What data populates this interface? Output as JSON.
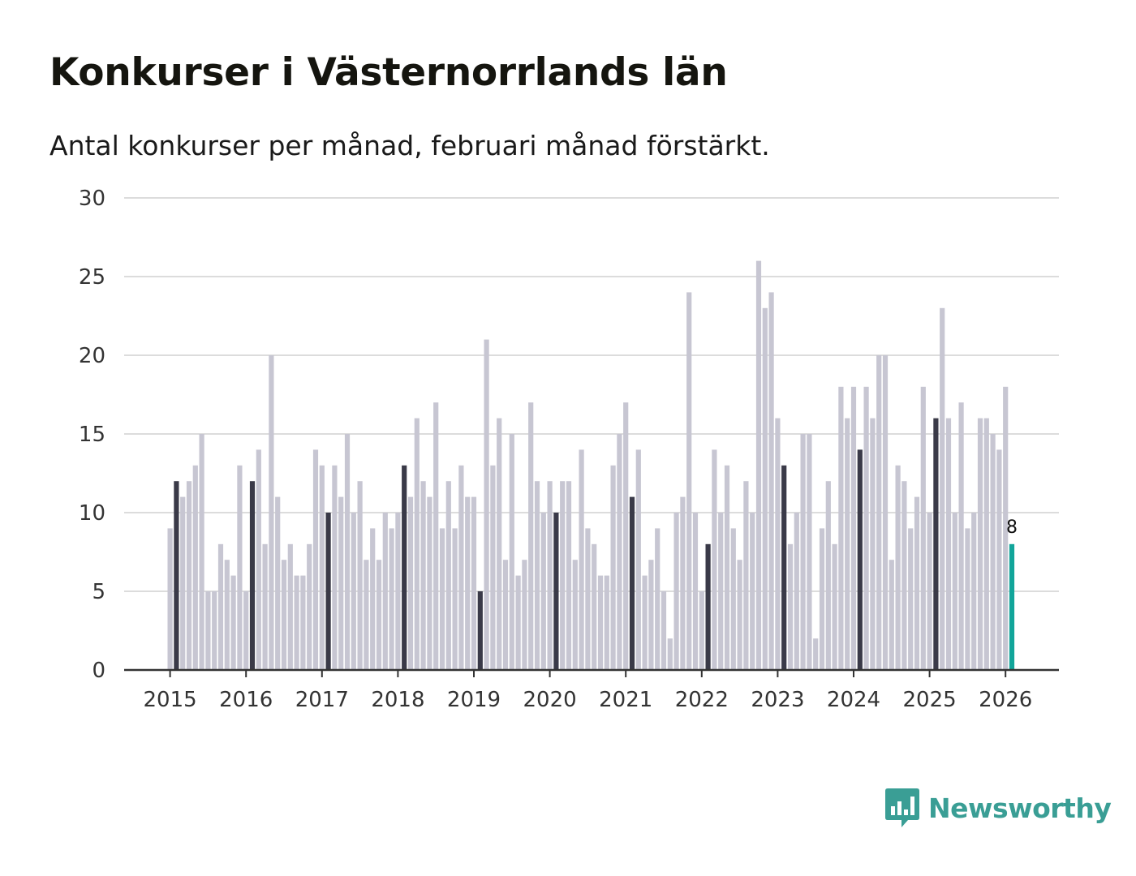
{
  "header": {
    "title": "Konkurser i Västernorrlands län",
    "subtitle": "Antal konkurser per månad, februari månad förstärkt."
  },
  "brand": {
    "name": "Newsworthy",
    "color": "#3a9e95"
  },
  "colors": {
    "bar": "#c7c6d2",
    "highlight": "#3a3a48",
    "last": "#12a59a"
  },
  "chart_data": {
    "type": "bar",
    "title": "Konkurser i Västernorrlands län",
    "subtitle": "Antal konkurser per månad, februari månad förstärkt.",
    "xlabel": "",
    "ylabel": "",
    "ylim": [
      0,
      30
    ],
    "yticks": [
      0,
      5,
      10,
      15,
      20,
      25,
      30
    ],
    "xticks": [
      "2015",
      "2016",
      "2017",
      "2018",
      "2019",
      "2020",
      "2021",
      "2022",
      "2023",
      "2024",
      "2025",
      "2026"
    ],
    "start": "2015-01",
    "highlight_month": "februari",
    "grid": true,
    "last_label": "8",
    "values": [
      9,
      12,
      11,
      12,
      13,
      15,
      5,
      5,
      8,
      7,
      6,
      13,
      5,
      12,
      14,
      8,
      20,
      11,
      7,
      8,
      6,
      6,
      8,
      14,
      13,
      10,
      13,
      11,
      15,
      10,
      12,
      7,
      9,
      7,
      10,
      9,
      10,
      13,
      11,
      16,
      12,
      11,
      17,
      9,
      12,
      9,
      13,
      11,
      11,
      5,
      21,
      13,
      16,
      7,
      15,
      6,
      7,
      17,
      12,
      10,
      12,
      10,
      12,
      12,
      7,
      14,
      9,
      8,
      6,
      6,
      13,
      15,
      17,
      11,
      14,
      6,
      7,
      9,
      5,
      2,
      10,
      11,
      24,
      10,
      5,
      8,
      14,
      10,
      13,
      9,
      7,
      12,
      10,
      26,
      23,
      24,
      16,
      13,
      8,
      10,
      15,
      15,
      2,
      9,
      12,
      8,
      18,
      16,
      18,
      14,
      18,
      16,
      20,
      20,
      7,
      13,
      12,
      9,
      11,
      18,
      10,
      16,
      23,
      16,
      10,
      17,
      9,
      10,
      16,
      16,
      15,
      14,
      18,
      8
    ]
  }
}
